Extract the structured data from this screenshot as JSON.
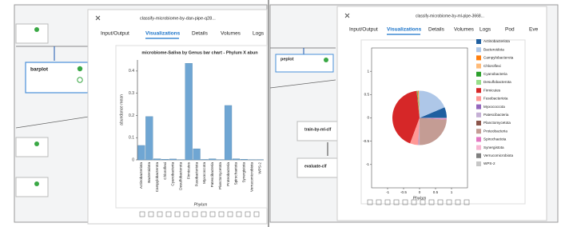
{
  "left": {
    "modal_title": "classify-microbiome-by-dan-pipe-q28...",
    "tabs": [
      "Input/Output",
      "Visualizations",
      "Details",
      "Volumes",
      "Logs"
    ],
    "nodes": [
      "barplot"
    ]
  },
  "right": {
    "modal_title": "classify-microbiome-by-ml-pipe-3668...",
    "tabs": [
      "Input/Output",
      "Visualizations",
      "Details",
      "Volumes",
      "Logs",
      "Pod",
      "Eve"
    ],
    "nodes": [
      "peplot",
      "train-by-ml-clf",
      "evaluate-clf"
    ]
  },
  "chart_data": [
    {
      "type": "bar",
      "title": "microbiome-Saliva by Genus bar chart - Phylum X abun",
      "xlabel": "Phylum",
      "ylabel": "abundance mean",
      "categories": [
        "Actinobacteriota",
        "Bacteroidota",
        "Campylobacterota",
        "Chloroflexi",
        "Cyanobacteria",
        "Desulfobacterota",
        "Firmicutes",
        "Fusobacteriota",
        "Myxococcota",
        "Patescibacteria",
        "Planctomycetota",
        "Proteobacteria",
        "Spirochaetota",
        "Synergistota",
        "Verrucomicrobiota",
        "WPS-2"
      ],
      "values": [
        0.065,
        0.195,
        0.005,
        0.003,
        0.004,
        0.001,
        0.435,
        0.05,
        0.002,
        0.005,
        0.001,
        0.245,
        0.005,
        0.003,
        0.001,
        0.001
      ],
      "color": "#6fa6d3",
      "ylim": [
        0,
        0.45
      ],
      "yticks": [
        0,
        0.1,
        0.2,
        0.3,
        0.4
      ]
    },
    {
      "type": "pie",
      "xlabel": "Phylum",
      "categories": [
        "Actinobacteriota",
        "Bacteroidota",
        "Campylobacterota",
        "Chloroflexi",
        "Cyanobacteria",
        "Desulfobacterota",
        "Firmicutes",
        "Fusobacteriota",
        "Myxococcota",
        "Patescibacteria",
        "Planctomycetota",
        "Proteobacteria",
        "Spirochaetota",
        "Synergistota",
        "Verrucomicrobiota",
        "WPS-2"
      ],
      "values": [
        0.065,
        0.195,
        0.005,
        0.003,
        0.004,
        0.001,
        0.435,
        0.05,
        0.002,
        0.005,
        0.001,
        0.245,
        0.005,
        0.003,
        0.001,
        0.001
      ],
      "colors": [
        "#1f5fa0",
        "#aec7e8",
        "#ff7f0e",
        "#ffbb78",
        "#2ca02c",
        "#98df8a",
        "#d62728",
        "#ff9896",
        "#9467bd",
        "#c5b0d5",
        "#8c564b",
        "#c49c94",
        "#e377c2",
        "#f7b6d2",
        "#7f7f7f",
        "#c7c7c7"
      ],
      "xlim": [
        -1.5,
        1.5
      ],
      "ylim": [
        -1.5,
        1.5
      ],
      "xticks": [
        -1,
        -0.5,
        0,
        0.5,
        1
      ],
      "yticks": [
        -1,
        -0.5,
        0,
        0.5,
        1
      ]
    }
  ]
}
